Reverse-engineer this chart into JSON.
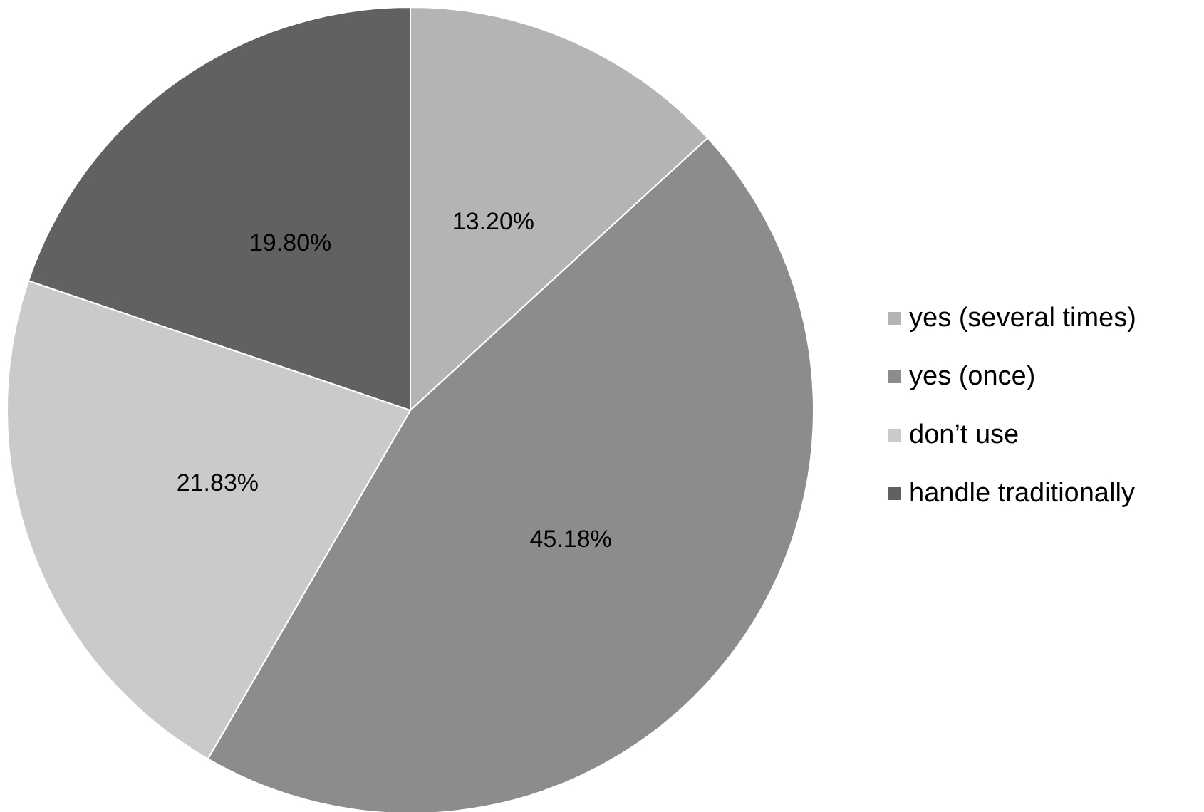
{
  "chart_data": {
    "type": "pie",
    "categories": [
      "yes (several times)",
      "yes (once)",
      "don’t use",
      "handle traditionally"
    ],
    "values": [
      13.2,
      45.18,
      21.83,
      19.8
    ],
    "value_labels": [
      "13.20%",
      "45.18%",
      "21.83%",
      "19.80%"
    ],
    "colors": [
      "#b4b4b4",
      "#8c8c8c",
      "#cacaca",
      "#616161"
    ],
    "legend": "right"
  }
}
